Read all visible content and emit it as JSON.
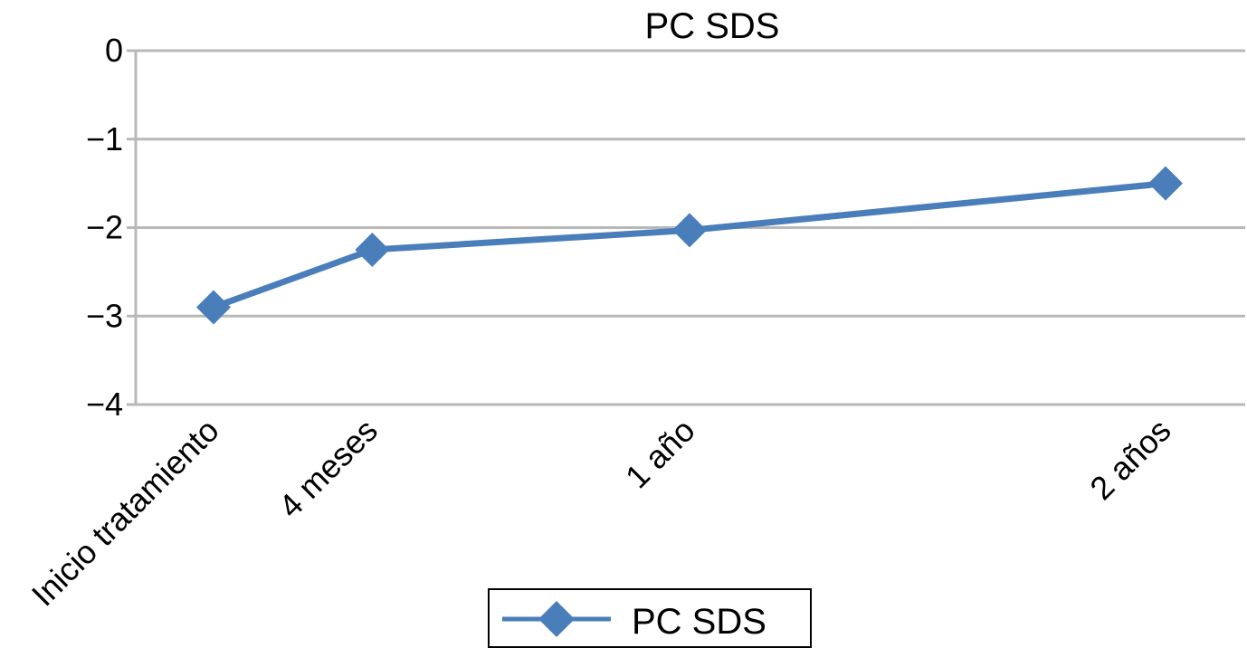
{
  "chart_data": {
    "type": "line",
    "title": "PC SDS",
    "xlabel": "",
    "ylabel": "",
    "categories": [
      "Inicio tratamiento",
      "4 meses",
      "1 año",
      "2 años"
    ],
    "x_positions_months": [
      0,
      4,
      12,
      24
    ],
    "series": [
      {
        "name": "PC SDS",
        "values": [
          -2.9,
          -2.25,
          -2.03,
          -1.5
        ],
        "color": "#4a7ebb",
        "marker": "diamond"
      }
    ],
    "ylim": [
      -4,
      0
    ],
    "yticks": [
      0,
      -1,
      -2,
      -3,
      -4
    ],
    "ytick_labels": [
      "0",
      "−1",
      "−2",
      "−3",
      "−4"
    ],
    "grid": true,
    "legend": "bottom-center"
  }
}
